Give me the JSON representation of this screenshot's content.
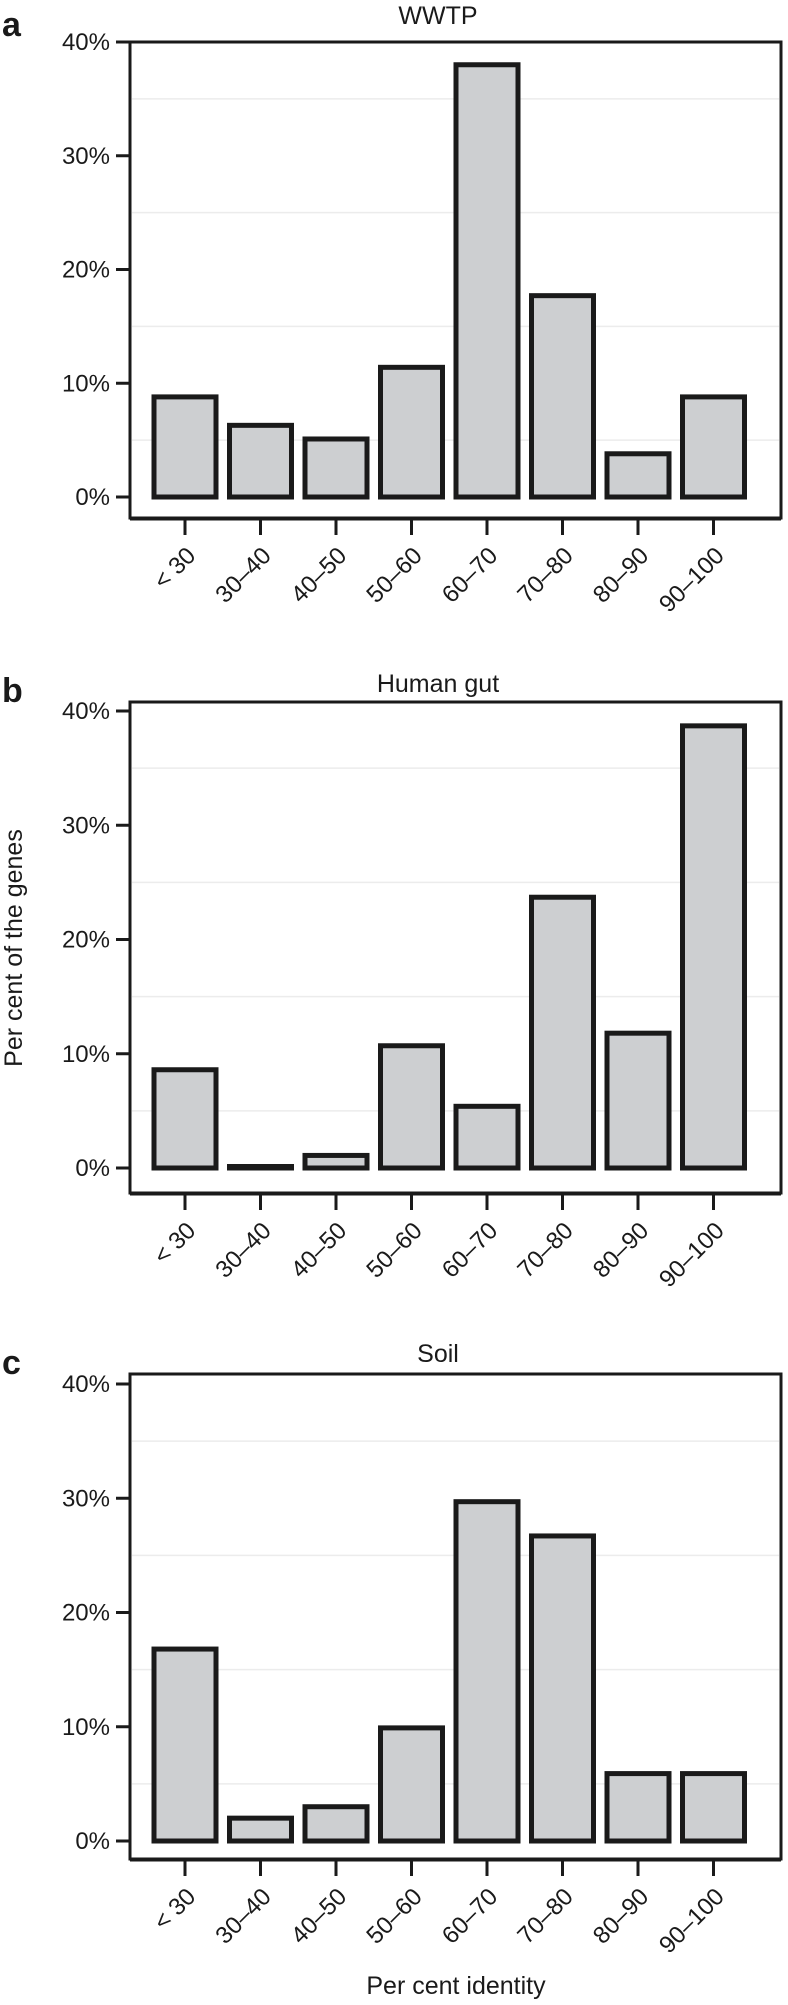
{
  "chart_data": [
    {
      "type": "bar",
      "panel_letter": "a",
      "title": "WWTP",
      "categories": [
        "< 30",
        "30–40",
        "40–50",
        "50–60",
        "60–70",
        "70–80",
        "80–90",
        "90–100"
      ],
      "values": [
        8.8,
        6.3,
        5.1,
        11.4,
        38.0,
        17.7,
        3.8,
        8.8
      ],
      "ylim": [
        0,
        40
      ],
      "yticks": [
        0,
        10,
        20,
        30,
        40
      ],
      "ytick_labels": [
        "0%",
        "10%",
        "20%",
        "30%",
        "40%"
      ],
      "xlabel": "",
      "ylabel": "",
      "grid": true,
      "bar_color": "#cdcfd1",
      "edge_color": "#1a1a1a"
    },
    {
      "type": "bar",
      "panel_letter": "b",
      "title": "Human gut",
      "categories": [
        "< 30",
        "30–40",
        "40–50",
        "50–60",
        "60–70",
        "70–80",
        "80–90",
        "90–100"
      ],
      "values": [
        8.6,
        0.1,
        1.1,
        10.7,
        5.4,
        23.7,
        11.8,
        38.7
      ],
      "ylim": [
        0,
        40
      ],
      "yticks": [
        0,
        10,
        20,
        30,
        40
      ],
      "ytick_labels": [
        "0%",
        "10%",
        "20%",
        "30%",
        "40%"
      ],
      "xlabel": "",
      "ylabel": "Per cent of the genes",
      "grid": true,
      "bar_color": "#cdcfd1",
      "edge_color": "#1a1a1a"
    },
    {
      "type": "bar",
      "panel_letter": "c",
      "title": "Soil",
      "categories": [
        "< 30",
        "30–40",
        "40–50",
        "50–60",
        "60–70",
        "70–80",
        "80–90",
        "90–100"
      ],
      "values": [
        16.8,
        2.0,
        3.0,
        9.9,
        29.7,
        26.7,
        5.9,
        5.9
      ],
      "ylim": [
        0,
        40
      ],
      "yticks": [
        0,
        10,
        20,
        30,
        40
      ],
      "ytick_labels": [
        "0%",
        "10%",
        "20%",
        "30%",
        "40%"
      ],
      "xlabel": "Per cent identity",
      "ylabel": "",
      "grid": true,
      "bar_color": "#cdcfd1",
      "edge_color": "#1a1a1a"
    }
  ]
}
